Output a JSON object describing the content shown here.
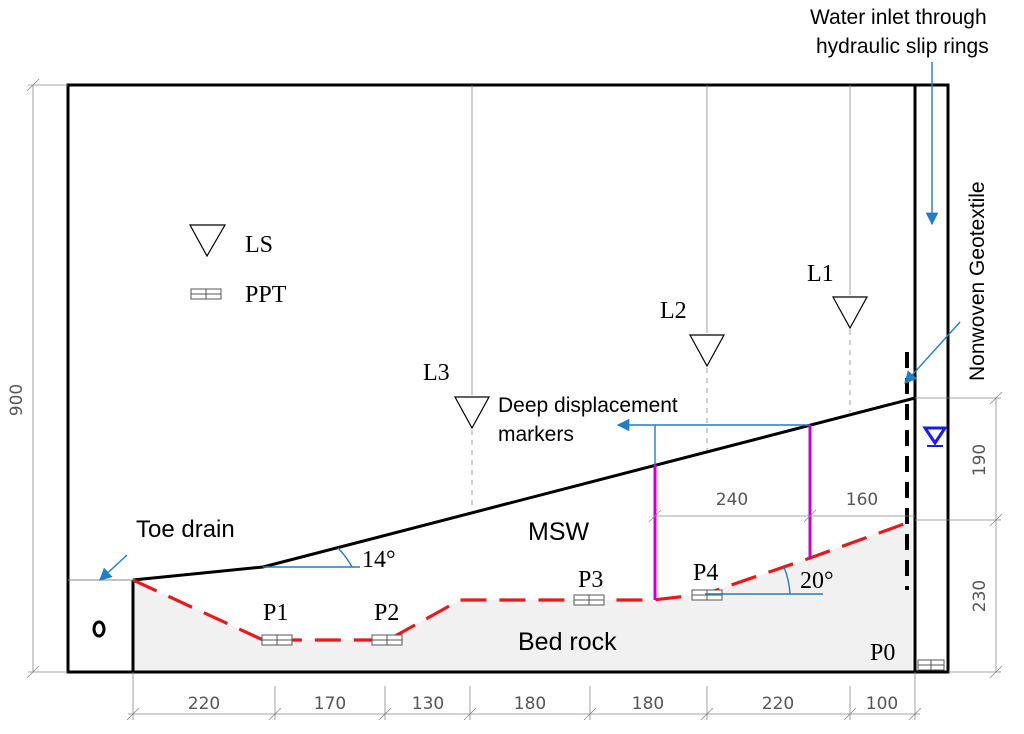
{
  "colors": {
    "slip_surface": "#e61a1a",
    "markers": "#cc00cc",
    "annotation_arrow": "#1f7ec4",
    "water_level": "#1a1aee",
    "bedrock_fill": "#f1f1f1"
  },
  "legend": {
    "ls_label": "LS",
    "ppt_label": "PPT"
  },
  "annotations": {
    "water_inlet_line1": "Water inlet through",
    "water_inlet_line2": "hydraulic slip rings",
    "geotextile": "Nonwoven Geotextile",
    "deep_markers_line1": "Deep displacement",
    "deep_markers_line2": "markers",
    "toe_drain": "Toe drain",
    "msw": "MSW",
    "bed_rock": "Bed rock"
  },
  "angles": {
    "toe_slope": "14°",
    "bedrock_slope": "20°"
  },
  "laser_sensors": [
    "L1",
    "L2",
    "L3"
  ],
  "pore_pressure_transducers": [
    "P0",
    "P1",
    "P2",
    "P3",
    "P4"
  ],
  "dimensions": {
    "height_total": "900",
    "right_upper": "190",
    "right_lower": "230",
    "inner_240": "240",
    "inner_160": "160",
    "bottom": [
      "220",
      "170",
      "130",
      "180",
      "180",
      "220",
      "100"
    ]
  }
}
